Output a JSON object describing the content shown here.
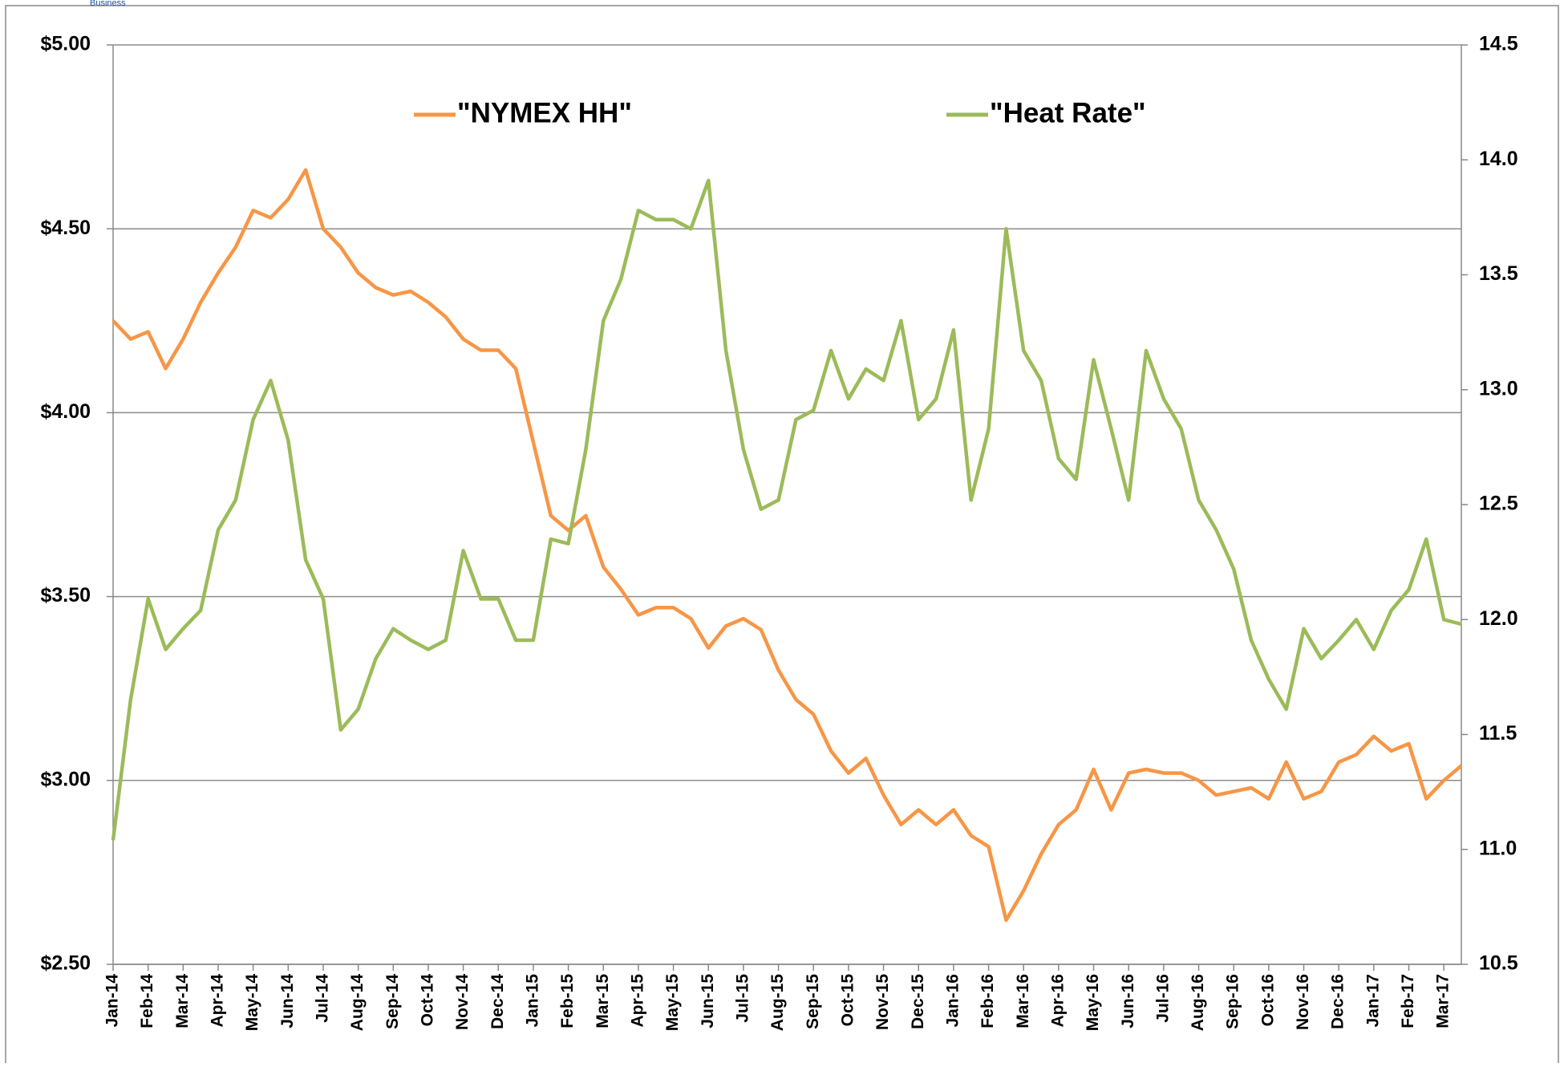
{
  "logo_text": "Business",
  "chart_data": {
    "type": "line",
    "categories": [
      "Jan-14",
      null,
      "Feb-14",
      null,
      "Mar-14",
      null,
      "Apr-14",
      null,
      "May-14",
      null,
      "Jun-14",
      null,
      "Jul-14",
      null,
      "Aug-14",
      null,
      "Sep-14",
      null,
      "Oct-14",
      null,
      "Nov-14",
      null,
      "Dec-14",
      null,
      "Jan-15",
      null,
      "Feb-15",
      null,
      "Mar-15",
      null,
      "Apr-15",
      null,
      "May-15",
      null,
      "Jun-15",
      null,
      "Jul-15",
      null,
      "Aug-15",
      null,
      "Sep-15",
      null,
      "Oct-15",
      null,
      "Nov-15",
      null,
      "Dec-15",
      null,
      "Jan-16",
      null,
      "Feb-16",
      null,
      "Mar-16",
      null,
      "Apr-16",
      null,
      "May-16",
      null,
      "Jun-16",
      null,
      "Jul-16",
      null,
      "Aug-16",
      null,
      "Sep-16",
      null,
      "Oct-16",
      null,
      "Nov-16",
      null,
      "Dec-16",
      null,
      "Jan-17",
      null,
      "Feb-17",
      null,
      "Mar-17",
      null
    ],
    "series": [
      {
        "name": "\"NYMEX HH\"",
        "color": "#f79646",
        "values": [
          4.25,
          4.2,
          4.22,
          4.12,
          4.2,
          4.3,
          4.38,
          4.45,
          4.55,
          4.53,
          4.58,
          4.66,
          4.5,
          4.45,
          4.38,
          4.34,
          4.32,
          4.33,
          4.3,
          4.26,
          4.2,
          4.17,
          4.17,
          4.12,
          3.92,
          3.72,
          3.68,
          3.72,
          3.58,
          3.52,
          3.45,
          3.47,
          3.47,
          3.44,
          3.36,
          3.42,
          3.44,
          3.41,
          3.3,
          3.22,
          3.18,
          3.08,
          3.02,
          3.06,
          2.96,
          2.88,
          2.92,
          2.88,
          2.92,
          2.85,
          2.82,
          2.62,
          2.7,
          2.8,
          2.88,
          2.92,
          3.03,
          2.92,
          3.02,
          3.03,
          3.02,
          3.02,
          3.0,
          2.96,
          2.97,
          2.98,
          2.95,
          3.05,
          2.95,
          2.97,
          3.05,
          3.07,
          3.12,
          3.08,
          3.1,
          2.95,
          3.0,
          3.04
        ]
      },
      {
        "name": "\"Heat Rate\"",
        "color": "#9bbb59",
        "axis": "y2",
        "values": [
          11.04,
          11.65,
          12.09,
          11.87,
          11.96,
          12.04,
          12.39,
          12.52,
          12.87,
          13.04,
          12.78,
          12.26,
          12.09,
          11.52,
          11.61,
          11.83,
          11.96,
          11.91,
          11.87,
          11.91,
          12.3,
          12.09,
          12.09,
          11.91,
          11.91,
          12.35,
          12.33,
          12.74,
          13.3,
          13.48,
          13.78,
          13.74,
          13.74,
          13.7,
          13.91,
          13.17,
          12.74,
          12.48,
          12.52,
          12.87,
          12.91,
          13.17,
          12.96,
          13.09,
          13.04,
          13.3,
          12.87,
          12.96,
          13.26,
          12.52,
          12.83,
          13.7,
          13.17,
          13.04,
          12.7,
          12.61,
          13.13,
          12.83,
          12.52,
          13.17,
          12.96,
          12.83,
          12.52,
          12.39,
          12.22,
          11.91,
          11.74,
          11.61,
          11.96,
          11.83,
          11.91,
          12.0,
          11.87,
          12.04,
          12.13,
          12.35,
          12.0,
          11.98
        ]
      }
    ],
    "ylim": [
      2.5,
      5
    ],
    "yticks": [
      {
        "value": 2.5,
        "label": "$2.50"
      },
      {
        "value": 3,
        "label": "$3.00"
      },
      {
        "value": 3.5,
        "label": "$3.50"
      },
      {
        "value": 4,
        "label": "$4.00"
      },
      {
        "value": 4.5,
        "label": "$4.50"
      },
      {
        "value": 5,
        "label": "$5.00"
      }
    ],
    "y2lim": [
      10.5,
      14.5
    ],
    "y2ticks": [
      10.5,
      {
        "value": 11,
        "label": "11.0"
      },
      11.5,
      {
        "value": 12,
        "label": "12.0"
      },
      12.5,
      {
        "value": 13,
        "label": "13.0"
      },
      13.5,
      {
        "value": 14,
        "label": "14.0"
      },
      14.5
    ],
    "grid": true,
    "legend": "top"
  }
}
